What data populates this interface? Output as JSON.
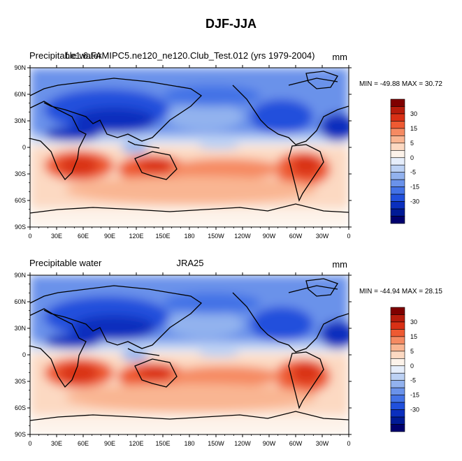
{
  "title": "DJF-JJA",
  "panels": [
    {
      "left_title": "Precipitable water",
      "center_title": "f.e1.6.FAMIPC5.ne120_ne120.Club_Test.012 (yrs 1979-2004)",
      "units": "mm",
      "stats": "MIN = -49.88 MAX =  30.72"
    },
    {
      "left_title": "Precipitable water",
      "center_title": "JRA25",
      "units": "mm",
      "stats": "MIN = -44.94 MAX =  28.15"
    }
  ],
  "axes": {
    "lon_ticks": [
      "0",
      "30E",
      "60E",
      "90E",
      "120E",
      "150E",
      "180",
      "150W",
      "120W",
      "90W",
      "60W",
      "30W",
      "0"
    ],
    "lat_ticks": [
      "90N",
      "60N",
      "30N",
      "0",
      "30S",
      "60S",
      "90S"
    ]
  },
  "colorbar": {
    "labels": [
      "30",
      "15",
      "5",
      "0",
      "-5",
      "-15",
      "-30"
    ],
    "colors": [
      "#7f0000",
      "#b71c0c",
      "#d93015",
      "#ee5a32",
      "#f58a62",
      "#f9b592",
      "#fcd9c2",
      "#fdf3ea",
      "#e6eefb",
      "#bcd1f4",
      "#92b2ee",
      "#6a92ea",
      "#4372e6",
      "#2150dc",
      "#0b2fbe",
      "#001a96",
      "#00006e"
    ]
  },
  "chart_data": {
    "type": "heatmap",
    "title": "DJF-JJA",
    "variable": "Precipitable water",
    "units": "mm",
    "x": [
      "0",
      "30E",
      "60E",
      "90E",
      "120E",
      "150E",
      "180",
      "150W",
      "120W",
      "90W",
      "60W",
      "30W",
      "0"
    ],
    "y": [
      "90N",
      "60N",
      "30N",
      "0",
      "30S",
      "60S",
      "90S"
    ],
    "series": [
      {
        "name": "f.e1.6.FAMIPC5.ne120_ne120.Club_Test.012 (yrs 1979-2004)",
        "min": -49.88,
        "max": 30.72
      },
      {
        "name": "JRA25",
        "min": -44.94,
        "max": 28.15
      }
    ]
  }
}
